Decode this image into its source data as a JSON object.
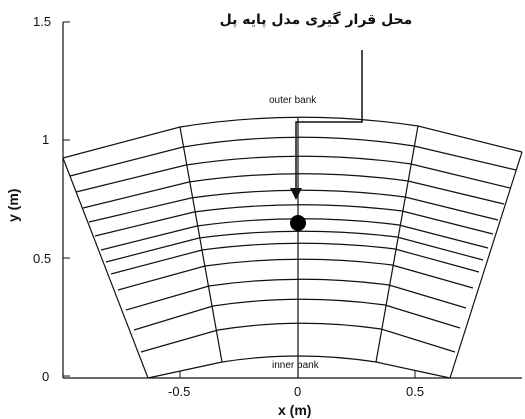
{
  "figure": {
    "annotation": "محل قرار گیری مدل پایه پل",
    "outer_bank_label": "outer bank",
    "inner_bank_label": "inner bank",
    "x_axis_label": "x (m)",
    "y_axis_label": "y (m)",
    "x_ticks": [
      "-0.5",
      "0",
      "0.5"
    ],
    "y_ticks": [
      "0",
      "0.5",
      "1",
      "1.5"
    ]
  },
  "mesh": {
    "description_units": "m",
    "pier_center": [
      0.0,
      0.65
    ],
    "xlim": [
      -1.0,
      0.95
    ],
    "ylim": [
      0.0,
      1.5
    ]
  }
}
